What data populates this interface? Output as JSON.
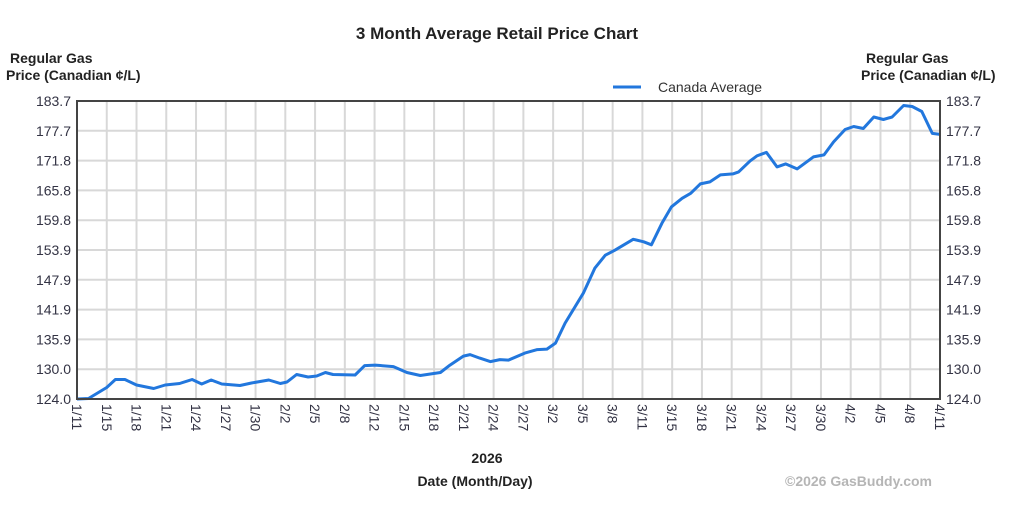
{
  "chart_data": {
    "type": "line",
    "title": "3 Month Average Retail Price Chart",
    "ylabel_left": [
      "Regular Gas",
      "Price (Canadian ¢/L)"
    ],
    "ylabel_right": [
      "Regular Gas",
      "Price (Canadian ¢/L)"
    ],
    "xlabel_year": "2026",
    "xlabel": "Date (Month/Day)",
    "copyright": "©2026 GasBuddy.com",
    "legend": {
      "label": "Canada Average",
      "placement": "top-right"
    },
    "ylim": [
      124.0,
      183.7
    ],
    "yticks": [
      "124.0",
      "130.0",
      "135.9",
      "141.9",
      "147.9",
      "153.9",
      "159.8",
      "165.8",
      "171.8",
      "177.7",
      "183.7"
    ],
    "xlim_days": [
      0,
      90
    ],
    "xticks": [
      "1/11",
      "1/15",
      "1/18",
      "1/21",
      "1/24",
      "1/27",
      "1/30",
      "2/2",
      "2/5",
      "2/8",
      "2/12",
      "2/15",
      "2/18",
      "2/21",
      "2/24",
      "2/27",
      "3/2",
      "3/5",
      "3/8",
      "3/11",
      "3/15",
      "3/18",
      "3/21",
      "3/24",
      "3/27",
      "3/30",
      "4/2",
      "4/5",
      "4/8",
      "4/11"
    ],
    "grid": true,
    "color": "#2277dd",
    "series": [
      {
        "name": "Canada Average",
        "x_unit": "days since 1/11",
        "points": [
          [
            0,
            124.0
          ],
          [
            1.2,
            124.1
          ],
          [
            3.1,
            126.3
          ],
          [
            4,
            127.9
          ],
          [
            5,
            127.9
          ],
          [
            6.2,
            126.8
          ],
          [
            8,
            126.1
          ],
          [
            9.2,
            126.8
          ],
          [
            10.7,
            127.1
          ],
          [
            12,
            127.9
          ],
          [
            13,
            127.0
          ],
          [
            14,
            127.8
          ],
          [
            15.1,
            127.0
          ],
          [
            17,
            126.7
          ],
          [
            18.2,
            127.2
          ],
          [
            20,
            127.8
          ],
          [
            21.2,
            127.1
          ],
          [
            21.9,
            127.4
          ],
          [
            22.9,
            128.9
          ],
          [
            24.1,
            128.4
          ],
          [
            25,
            128.6
          ],
          [
            25.9,
            129.3
          ],
          [
            26.7,
            128.9
          ],
          [
            29,
            128.8
          ],
          [
            30,
            130.7
          ],
          [
            31.1,
            130.8
          ],
          [
            33,
            130.5
          ],
          [
            34.4,
            129.3
          ],
          [
            35.8,
            128.7
          ],
          [
            37.9,
            129.3
          ],
          [
            38.9,
            130.8
          ],
          [
            40.3,
            132.6
          ],
          [
            41,
            132.9
          ],
          [
            42,
            132.2
          ],
          [
            43.1,
            131.5
          ],
          [
            44.1,
            131.9
          ],
          [
            45,
            131.8
          ],
          [
            46.7,
            133.2
          ],
          [
            48,
            133.9
          ],
          [
            49,
            134.0
          ],
          [
            49.9,
            135.2
          ],
          [
            50.9,
            139.2
          ],
          [
            52.8,
            145.2
          ],
          [
            54,
            150.2
          ],
          [
            55.1,
            152.8
          ],
          [
            56.1,
            153.8
          ],
          [
            58,
            156.0
          ],
          [
            59.1,
            155.5
          ],
          [
            59.9,
            154.9
          ],
          [
            61,
            159.2
          ],
          [
            62,
            162.5
          ],
          [
            63.1,
            164.2
          ],
          [
            64,
            165.2
          ],
          [
            65,
            167.1
          ],
          [
            66,
            167.5
          ],
          [
            67.1,
            168.9
          ],
          [
            68.4,
            169.1
          ],
          [
            69,
            169.5
          ],
          [
            70.2,
            171.7
          ],
          [
            70.9,
            172.7
          ],
          [
            71.9,
            173.4
          ],
          [
            73,
            170.5
          ],
          [
            73.9,
            171.1
          ],
          [
            75.1,
            170.1
          ],
          [
            76.8,
            172.5
          ],
          [
            77.9,
            172.9
          ],
          [
            78.9,
            175.5
          ],
          [
            80.1,
            178.0
          ],
          [
            81,
            178.6
          ],
          [
            82,
            178.2
          ],
          [
            83.1,
            180.5
          ],
          [
            84.1,
            180.0
          ],
          [
            85,
            180.5
          ],
          [
            86.2,
            182.8
          ],
          [
            87.1,
            182.6
          ],
          [
            88.1,
            181.6
          ],
          [
            89.2,
            177.2
          ],
          [
            90,
            177.0
          ]
        ]
      }
    ]
  }
}
